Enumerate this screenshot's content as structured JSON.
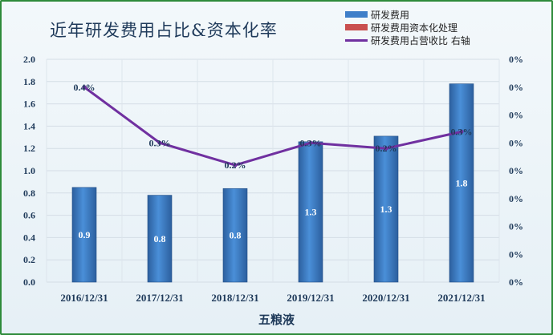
{
  "title": "近年研发费用占比&资本化率",
  "legend": [
    {
      "label": "研发费用",
      "kind": "bar",
      "color": "#3f7fc9"
    },
    {
      "label": "研发费用资本化处理",
      "kind": "bar",
      "color": "#c94f4f"
    },
    {
      "label": "研发费用占营收比 右轴",
      "kind": "line",
      "color": "#7030a0"
    }
  ],
  "chart_data": {
    "type": "bar",
    "title": "近年研发费用占比&资本化率",
    "xlabel": "五粮液",
    "categories": [
      "2016/12/31",
      "2017/12/31",
      "2018/12/31",
      "2019/12/31",
      "2020/12/31",
      "2021/12/31"
    ],
    "series": [
      {
        "name": "研发费用",
        "type": "bar",
        "axis": "left",
        "values": [
          0.85,
          0.78,
          0.84,
          1.26,
          1.31,
          1.78
        ],
        "labels": [
          "0.9",
          "0.8",
          "0.8",
          "1.3",
          "1.3",
          "1.8"
        ],
        "color": "#3f7fc9"
      },
      {
        "name": "研发费用资本化处理",
        "type": "bar",
        "axis": "left",
        "values": [
          0,
          0,
          0,
          0,
          0,
          0
        ],
        "labels": [],
        "color": "#c94f4f"
      },
      {
        "name": "研发费用占营收比 右轴",
        "type": "line",
        "axis": "right",
        "values": [
          0.0035,
          0.0025,
          0.0021,
          0.0025,
          0.0024,
          0.0027
        ],
        "labels": [
          "0.4%",
          "0.3%",
          "0.2%",
          "0.3%",
          "0.2%",
          "0.3%"
        ],
        "color": "#7030a0"
      }
    ],
    "left_axis": {
      "min": 0,
      "max": 2.0,
      "ticks": [
        "0.0",
        "0.2",
        "0.4",
        "0.6",
        "0.8",
        "1.0",
        "1.2",
        "1.4",
        "1.6",
        "1.8",
        "2.0"
      ]
    },
    "right_axis": {
      "min": 0,
      "max": 0.004,
      "ticks": [
        "0%",
        "0%",
        "0%",
        "0%",
        "0%",
        "0%",
        "0%",
        "0%",
        "0%"
      ]
    },
    "grid": true,
    "legend_position": "top-right"
  }
}
